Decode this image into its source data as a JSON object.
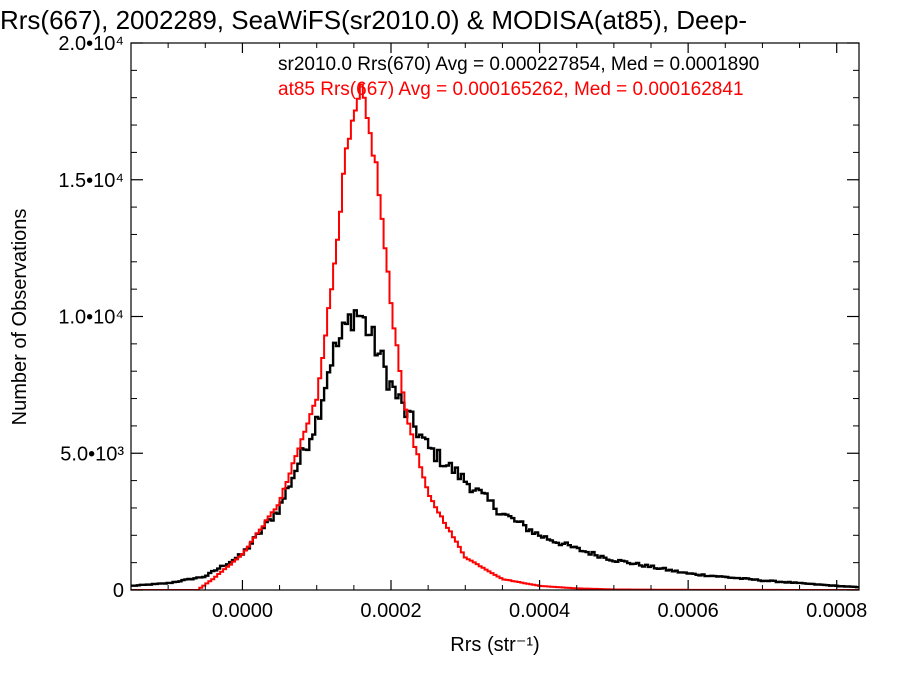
{
  "chart_data": {
    "type": "line",
    "title": "Rrs(667), 2002289, SeaWiFS(sr2010.0) & MODISA(at85), Deep-",
    "xlabel": "Rrs (str⁻¹)",
    "ylabel": "Number of Observations",
    "xlim": [
      -0.00015,
      0.00083
    ],
    "ylim": [
      0,
      20000
    ],
    "grid": false,
    "legend_position": "top-right",
    "x_ticks": [
      {
        "value": 0.0,
        "label": "0.0000"
      },
      {
        "value": 0.0002,
        "label": "0.0002"
      },
      {
        "value": 0.0004,
        "label": "0.0004"
      },
      {
        "value": 0.0006,
        "label": "0.0006"
      },
      {
        "value": 0.0008,
        "label": "0.0008"
      }
    ],
    "y_ticks": [
      {
        "value": 0,
        "label": "0"
      },
      {
        "value": 5000,
        "label": "5.0•10³"
      },
      {
        "value": 10000,
        "label": "1.0•10⁴"
      },
      {
        "value": 15000,
        "label": "1.5•10⁴"
      },
      {
        "value": 20000,
        "label": "2.0•10⁴"
      }
    ],
    "series": [
      {
        "name": "sr2010.0 Rrs(670) Avg = 0.000227854, Med = 0.0001890",
        "color": "#000000",
        "x": [
          -0.00015,
          -0.0001,
          -5e-05,
          0.0,
          5e-05,
          0.0001,
          0.00012,
          0.00014,
          0.00015,
          0.00016,
          0.00018,
          0.0002,
          0.00022,
          0.00025,
          0.0003,
          0.00035,
          0.0004,
          0.00045,
          0.0005,
          0.0006,
          0.0007,
          0.0008,
          0.00083
        ],
        "y": [
          150,
          250,
          500,
          1300,
          3000,
          6200,
          8500,
          9600,
          10200,
          10000,
          8900,
          7500,
          6500,
          5200,
          4000,
          2800,
          2000,
          1500,
          1100,
          600,
          350,
          150,
          100
        ]
      },
      {
        "name": "at85 Rrs(667) Avg = 0.000165262, Med = 0.000162841",
        "color": "#ff0000",
        "x": [
          -0.00015,
          -6e-05,
          -4e-05,
          0.0,
          5e-05,
          0.0001,
          0.00012,
          0.00014,
          0.00016,
          0.00018,
          0.0002,
          0.00022,
          0.00025,
          0.0003,
          0.00035,
          0.0004,
          0.00045,
          0.0005,
          0.0006,
          0.0008,
          0.00083
        ],
        "y": [
          0,
          0,
          400,
          1300,
          3200,
          7000,
          11000,
          16000,
          18300,
          15500,
          10500,
          6500,
          3500,
          1200,
          400,
          150,
          60,
          20,
          5,
          0,
          0
        ]
      }
    ]
  }
}
